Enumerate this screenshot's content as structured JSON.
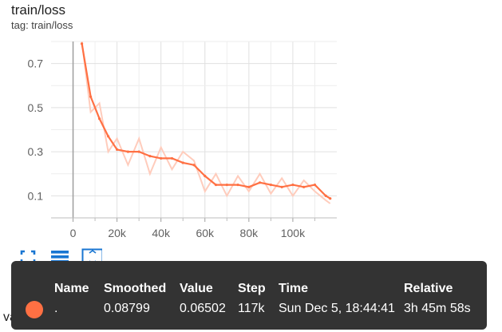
{
  "header": {
    "title": "train/loss",
    "tag": "tag: train/loss"
  },
  "colors": {
    "accent": "#ff7043",
    "accent_light": "#ffccbc",
    "tooltip_bg": "#333333",
    "icon_blue": "#1976d2"
  },
  "toolbar": {
    "buttons": [
      {
        "name": "fullscreen-icon"
      },
      {
        "name": "toggle-y-log-icon"
      },
      {
        "name": "fit-domain-icon"
      }
    ]
  },
  "tooltip": {
    "headers": {
      "name": "Name",
      "smoothed": "Smoothed",
      "value": "Value",
      "step": "Step",
      "time": "Time",
      "relative": "Relative"
    },
    "row": {
      "name": ".",
      "smoothed": "0.08799",
      "value": "0.06502",
      "step": "117k",
      "time": "Sun Dec 5, 18:44:41",
      "relative": "3h 45m 58s"
    }
  },
  "run_label": "val",
  "chart_data": {
    "type": "line",
    "title": "train/loss",
    "x_ticks": [
      "0",
      "20k",
      "40k",
      "60k",
      "80k",
      "100k"
    ],
    "y_ticks": [
      "0.1",
      "0.3",
      "0.5",
      "0.7"
    ],
    "xlim": [
      -10000,
      120000
    ],
    "ylim": [
      0,
      0.8
    ],
    "grid": true,
    "series": [
      {
        "x": [
          4000,
          8000,
          12000,
          16000,
          20000,
          25000,
          30000,
          35000,
          40000,
          45000,
          50000,
          55000,
          60000,
          65000,
          70000,
          75000,
          80000,
          85000,
          90000,
          95000,
          100000,
          105000,
          110000,
          115000,
          117000
        ],
        "smoothed": [
          0.79,
          0.55,
          0.45,
          0.37,
          0.31,
          0.3,
          0.3,
          0.28,
          0.27,
          0.27,
          0.25,
          0.24,
          0.19,
          0.15,
          0.15,
          0.15,
          0.14,
          0.16,
          0.15,
          0.14,
          0.15,
          0.14,
          0.15,
          0.1,
          0.088
        ],
        "raw": [
          0.8,
          0.48,
          0.52,
          0.3,
          0.36,
          0.24,
          0.36,
          0.2,
          0.32,
          0.22,
          0.3,
          0.26,
          0.12,
          0.2,
          0.1,
          0.19,
          0.12,
          0.2,
          0.11,
          0.18,
          0.1,
          0.17,
          0.12,
          0.08,
          0.065
        ]
      }
    ]
  }
}
